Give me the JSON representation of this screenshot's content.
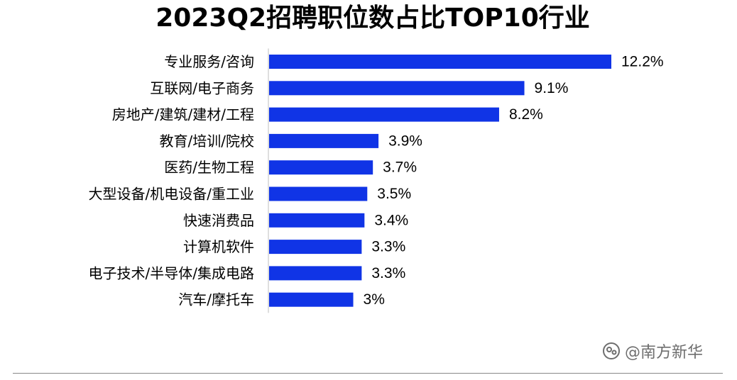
{
  "chart_data": {
    "type": "bar",
    "orientation": "horizontal",
    "title": "2023Q2招聘职位数占比TOP10行业",
    "categories": [
      "专业服务/咨询",
      "互联网/电子商务",
      "房地产/建筑/建材/工程",
      "教育/培训/院校",
      "医药/生物工程",
      "大型设备/机电设备/重工业",
      "快速消费品",
      "计算机软件",
      "电子技术/半导体/集成电路",
      "汽车/摩托车"
    ],
    "values": [
      12.2,
      9.1,
      8.2,
      3.9,
      3.7,
      3.5,
      3.4,
      3.3,
      3.3,
      3.0
    ],
    "data_labels": [
      "12.2%",
      "9.1%",
      "8.2%",
      "3.9%",
      "3.7%",
      "3.5%",
      "3.4%",
      "3.3%",
      "3.3%",
      "3%"
    ],
    "unit": "%",
    "xlim": [
      0,
      12.2
    ],
    "bar_color": "#1034e6",
    "xlabel": "",
    "ylabel": "",
    "grid": false,
    "legend": "none"
  },
  "watermark": {
    "text": "@南方新华",
    "icon": "weibo-eye-icon",
    "color": "#6e6e6e"
  }
}
